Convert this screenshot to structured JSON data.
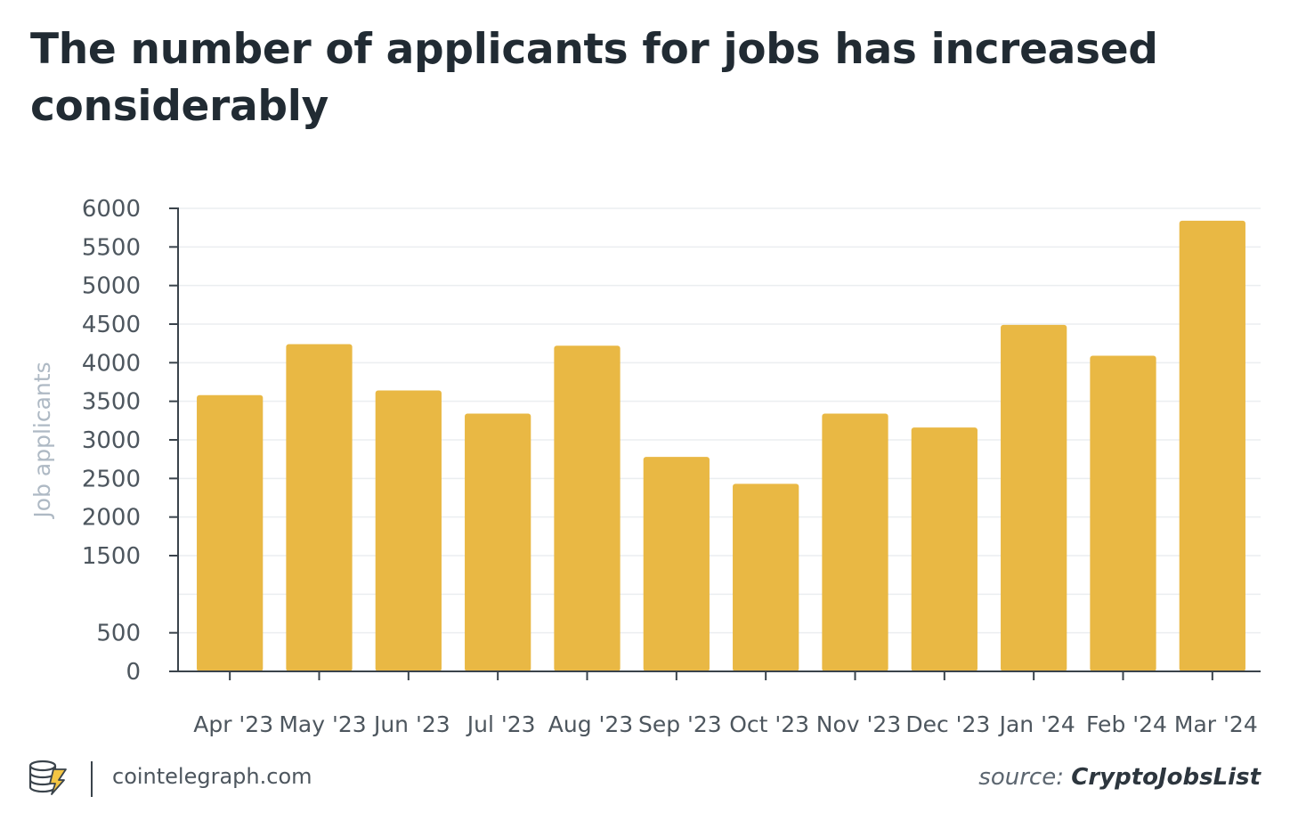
{
  "title": "The number of applicants for jobs has increased considerably",
  "chart_data": {
    "type": "bar",
    "ylabel": "Job applicants",
    "xlabel": "",
    "ylim": [
      0,
      6000
    ],
    "yticks": [
      0,
      500,
      1500,
      2000,
      2500,
      3000,
      3500,
      4000,
      4500,
      5000,
      5500,
      6000
    ],
    "grid": true,
    "bar_color": "#e9b844",
    "categories": [
      "Apr '23",
      "May '23",
      "Jun '23",
      "Jul '23",
      "Aug '23",
      "Sep '23",
      "Oct '23",
      "Nov '23",
      "Dec '23",
      "Jan '24",
      "Feb '24",
      "Mar '24"
    ],
    "values": [
      3580,
      4240,
      3640,
      3340,
      4220,
      2780,
      2430,
      3340,
      3160,
      4490,
      4090,
      5840
    ]
  },
  "footer": {
    "site": "cointelegraph.com",
    "logo_icon": "cointelegraph-coin-logo-icon",
    "source_label": "source:",
    "source_name": "CryptoJobsList"
  }
}
